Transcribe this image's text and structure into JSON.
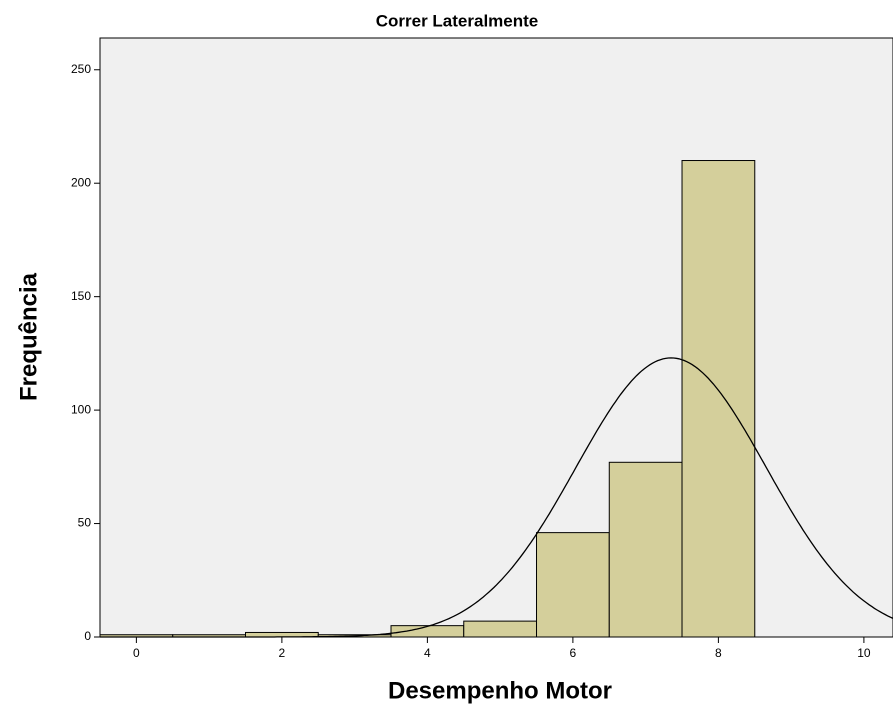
{
  "chart_data": {
    "type": "histogram",
    "title": "Correr Lateralmente",
    "x_label": "Desempenho Motor",
    "y_label": "Frequência",
    "bins": [
      -0.5,
      0.5,
      1.5,
      2.5,
      3.5,
      4.5,
      5.5,
      6.5,
      7.5,
      8.5
    ],
    "values": [
      1,
      1,
      2,
      1,
      5,
      7,
      46,
      77,
      210
    ],
    "color": "#d4cf9b",
    "background": "#f0f0f0",
    "xlim": [
      -0.5,
      10.4
    ],
    "xticks": [
      0,
      2,
      4,
      6,
      8,
      10
    ],
    "ylim": [
      0,
      264
    ],
    "yticks": [
      0,
      50,
      100,
      150,
      200,
      250
    ],
    "normal_curve": {
      "mean": 7.35,
      "sd": 1.31,
      "peak": 123
    }
  }
}
